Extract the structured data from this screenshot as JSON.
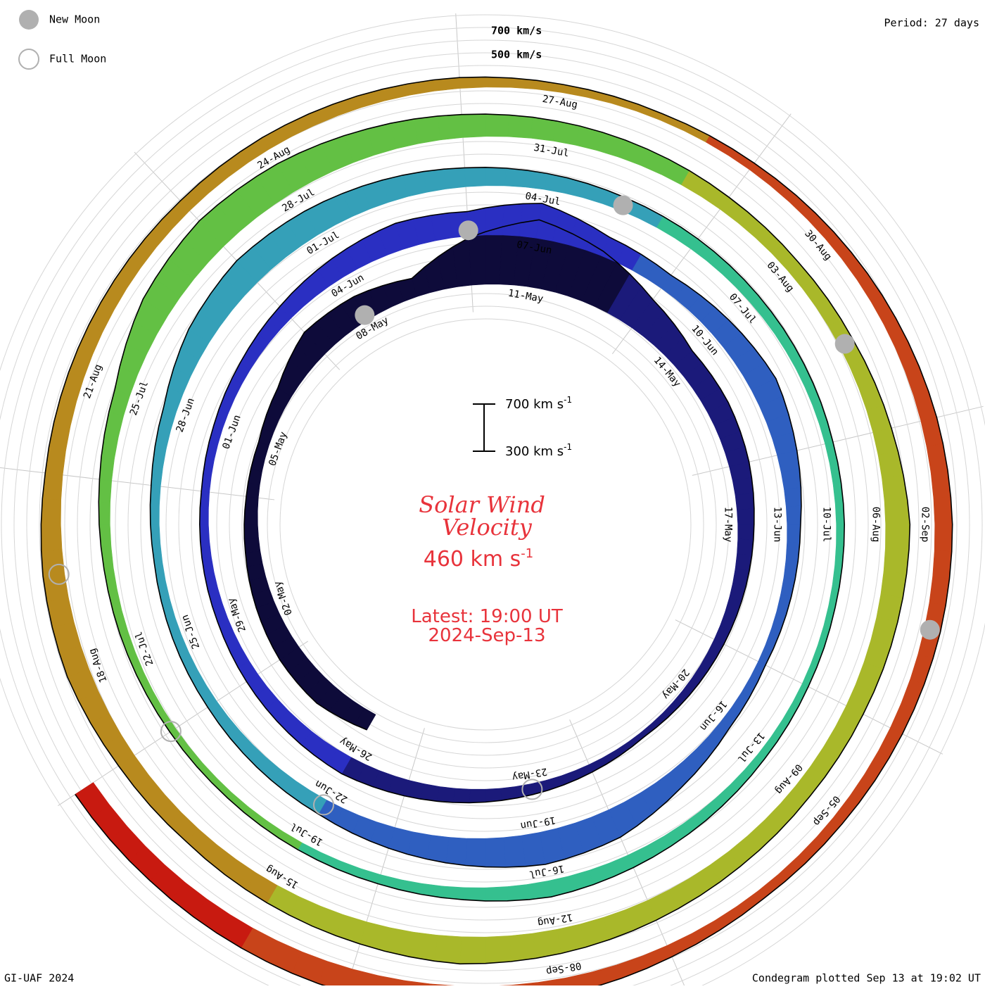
{
  "legend": {
    "new_moon_label": "New Moon",
    "full_moon_label": "Full Moon"
  },
  "period_label": "Period: 27 days",
  "ring_scale": {
    "upper_label": "700 km/s",
    "lower_label": "500 km/s"
  },
  "scale_bar": {
    "top_label": "700 km s",
    "bottom_label": "300 km s",
    "superscript": "-1"
  },
  "center": {
    "title_line1": "Solar Wind",
    "title_line2": "Velocity",
    "value": "460 km s",
    "value_sup": "-1",
    "latest_label": "Latest: 19:00 UT",
    "latest_date": "2024-Sep-13"
  },
  "footer": {
    "left": "GI-UAF 2024",
    "right": "Condegram plotted Sep 13 at 19:02 UT"
  },
  "colors": {
    "text_red": "#e8333b",
    "rotation_colors": [
      "#0e0b3a",
      "#1b1a7a",
      "#2a2fc2",
      "#2f5fc0",
      "#35a0b8",
      "#35c08f",
      "#63c044",
      "#a9b82a",
      "#b88a1e",
      "#c8441a",
      "#c81a10"
    ]
  },
  "chart_data": {
    "type": "condegram",
    "title": "Solar Wind Velocity",
    "units": "km s-1",
    "period_days": 27,
    "start_date": "2024-04-29",
    "end_date": "2024-09-13",
    "scale_range": [
      300,
      700
    ],
    "date_labels": [
      "02-May",
      "05-May",
      "08-May",
      "11-May",
      "14-May",
      "17-May",
      "20-May",
      "23-May",
      "26-May",
      "29-May",
      "01-Jun",
      "04-Jun",
      "07-Jun",
      "10-Jun",
      "13-Jun",
      "16-Jun",
      "19-Jun",
      "22-Jun",
      "25-Jun",
      "28-Jun",
      "01-Jul",
      "04-Jul",
      "07-Jul",
      "10-Jul",
      "13-Jul",
      "16-Jul",
      "19-Jul",
      "22-Jul",
      "25-Jul",
      "28-Jul",
      "31-Jul",
      "03-Aug",
      "06-Aug",
      "09-Aug",
      "12-Aug",
      "15-Aug",
      "18-Aug",
      "21-Aug",
      "24-Aug",
      "27-Aug",
      "30-Aug",
      "02-Sep",
      "05-Sep",
      "08-Sep"
    ],
    "daily_speed": [
      [
        "2024-04-29",
        430
      ],
      [
        "2024-04-30",
        480
      ],
      [
        "2024-05-01",
        470
      ],
      [
        "2024-05-02",
        440
      ],
      [
        "2024-05-03",
        410
      ],
      [
        "2024-05-04",
        390
      ],
      [
        "2024-05-05",
        380
      ],
      [
        "2024-05-06",
        420
      ],
      [
        "2024-05-07",
        520
      ],
      [
        "2024-05-08",
        500
      ],
      [
        "2024-05-09",
        440
      ],
      [
        "2024-05-10",
        650
      ],
      [
        "2024-05-11",
        800
      ],
      [
        "2024-05-12",
        700
      ],
      [
        "2024-05-13",
        560
      ],
      [
        "2024-05-14",
        470
      ],
      [
        "2024-05-15",
        470
      ],
      [
        "2024-05-16",
        450
      ],
      [
        "2024-05-17",
        420
      ],
      [
        "2024-05-18",
        400
      ],
      [
        "2024-05-19",
        380
      ],
      [
        "2024-05-20",
        360
      ],
      [
        "2024-05-21",
        340
      ],
      [
        "2024-05-22",
        360
      ],
      [
        "2024-05-23",
        380
      ],
      [
        "2024-05-24",
        400
      ],
      [
        "2024-05-25",
        420
      ],
      [
        "2024-05-26",
        440
      ],
      [
        "2024-05-27",
        420
      ],
      [
        "2024-05-28",
        400
      ],
      [
        "2024-05-29",
        380
      ],
      [
        "2024-05-30",
        370
      ],
      [
        "2024-05-31",
        360
      ],
      [
        "2024-06-01",
        370
      ],
      [
        "2024-06-02",
        390
      ],
      [
        "2024-06-03",
        420
      ],
      [
        "2024-06-04",
        460
      ],
      [
        "2024-06-05",
        500
      ],
      [
        "2024-06-06",
        480
      ],
      [
        "2024-06-07",
        560
      ],
      [
        "2024-06-08",
        450
      ],
      [
        "2024-06-09",
        420
      ],
      [
        "2024-06-10",
        460
      ],
      [
        "2024-06-11",
        500
      ],
      [
        "2024-06-12",
        450
      ],
      [
        "2024-06-13",
        400
      ],
      [
        "2024-06-14",
        380
      ],
      [
        "2024-06-15",
        360
      ],
      [
        "2024-06-16",
        380
      ],
      [
        "2024-06-17",
        440
      ],
      [
        "2024-06-18",
        520
      ],
      [
        "2024-06-19",
        540
      ],
      [
        "2024-06-20",
        500
      ],
      [
        "2024-06-21",
        460
      ],
      [
        "2024-06-22",
        420
      ],
      [
        "2024-06-23",
        400
      ],
      [
        "2024-06-24",
        380
      ],
      [
        "2024-06-25",
        370
      ],
      [
        "2024-06-26",
        360
      ],
      [
        "2024-06-27",
        370
      ],
      [
        "2024-06-28",
        400
      ],
      [
        "2024-06-29",
        480
      ],
      [
        "2024-06-30",
        520
      ],
      [
        "2024-07-01",
        500
      ],
      [
        "2024-07-02",
        470
      ],
      [
        "2024-07-03",
        440
      ],
      [
        "2024-07-04",
        420
      ],
      [
        "2024-07-05",
        400
      ],
      [
        "2024-07-06",
        390
      ],
      [
        "2024-07-07",
        380
      ],
      [
        "2024-07-08",
        370
      ],
      [
        "2024-07-09",
        360
      ],
      [
        "2024-07-10",
        360
      ],
      [
        "2024-07-11",
        350
      ],
      [
        "2024-07-12",
        350
      ],
      [
        "2024-07-13",
        360
      ],
      [
        "2024-07-14",
        380
      ],
      [
        "2024-07-15",
        400
      ],
      [
        "2024-07-16",
        420
      ],
      [
        "2024-07-17",
        390
      ],
      [
        "2024-07-18",
        370
      ],
      [
        "2024-07-19",
        360
      ],
      [
        "2024-07-20",
        350
      ],
      [
        "2024-07-21",
        350
      ],
      [
        "2024-07-22",
        360
      ],
      [
        "2024-07-23",
        370
      ],
      [
        "2024-07-24",
        390
      ],
      [
        "2024-07-25",
        420
      ],
      [
        "2024-07-26",
        520
      ],
      [
        "2024-07-27",
        560
      ],
      [
        "2024-07-28",
        540
      ],
      [
        "2024-07-29",
        500
      ],
      [
        "2024-07-30",
        470
      ],
      [
        "2024-07-31",
        450
      ],
      [
        "2024-08-01",
        430
      ],
      [
        "2024-08-02",
        410
      ],
      [
        "2024-08-03",
        400
      ],
      [
        "2024-08-04",
        410
      ],
      [
        "2024-08-05",
        440
      ],
      [
        "2024-08-06",
        480
      ],
      [
        "2024-08-07",
        460
      ],
      [
        "2024-08-08",
        440
      ],
      [
        "2024-08-09",
        430
      ],
      [
        "2024-08-10",
        440
      ],
      [
        "2024-08-11",
        460
      ],
      [
        "2024-08-12",
        480
      ],
      [
        "2024-08-13",
        500
      ],
      [
        "2024-08-14",
        470
      ],
      [
        "2024-08-15",
        450
      ],
      [
        "2024-08-16",
        430
      ],
      [
        "2024-08-17",
        440
      ],
      [
        "2024-08-18",
        470
      ],
      [
        "2024-08-19",
        460
      ],
      [
        "2024-08-20",
        430
      ],
      [
        "2024-08-21",
        420
      ],
      [
        "2024-08-22",
        410
      ],
      [
        "2024-08-23",
        400
      ],
      [
        "2024-08-24",
        400
      ],
      [
        "2024-08-25",
        390
      ],
      [
        "2024-08-26",
        380
      ],
      [
        "2024-08-27",
        360
      ],
      [
        "2024-08-28",
        350
      ],
      [
        "2024-08-29",
        360
      ],
      [
        "2024-08-30",
        380
      ],
      [
        "2024-08-31",
        400
      ],
      [
        "2024-09-01",
        420
      ],
      [
        "2024-09-02",
        430
      ],
      [
        "2024-09-03",
        420
      ],
      [
        "2024-09-04",
        400
      ],
      [
        "2024-09-05",
        380
      ],
      [
        "2024-09-06",
        370
      ],
      [
        "2024-09-07",
        390
      ],
      [
        "2024-09-08",
        420
      ],
      [
        "2024-09-09",
        450
      ],
      [
        "2024-09-10",
        480
      ],
      [
        "2024-09-11",
        470
      ],
      [
        "2024-09-12",
        460
      ],
      [
        "2024-09-13",
        460
      ]
    ],
    "new_moon_dates": [
      "2024-05-08",
      "2024-06-06",
      "2024-07-05",
      "2024-08-04",
      "2024-09-03"
    ],
    "full_moon_dates": [
      "2024-05-23",
      "2024-06-22",
      "2024-07-21",
      "2024-08-19"
    ],
    "legend_placement": "top-left",
    "grid": true
  }
}
